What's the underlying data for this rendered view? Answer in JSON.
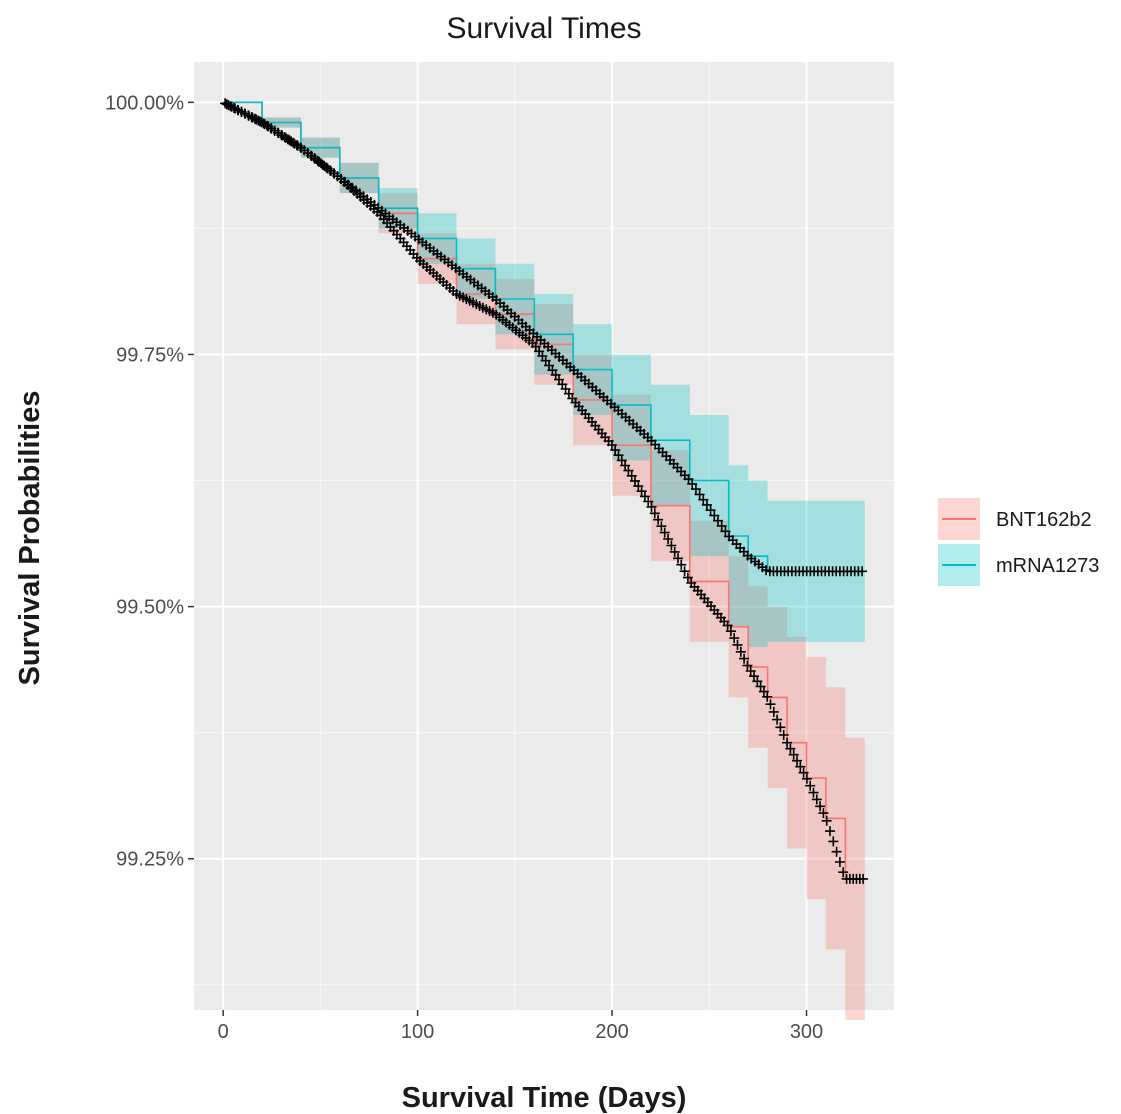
{
  "chart_data": {
    "type": "line",
    "subtype": "kaplan-meier survival curve with confidence bands and censor marks",
    "title": "Survival Times",
    "xlabel": "Survival Time (Days)",
    "ylabel": "Survival Probabilities",
    "xlim": [
      -15,
      345
    ],
    "ylim": [
      99.1,
      100.04
    ],
    "x_ticks": [
      0,
      100,
      200,
      300
    ],
    "x_tick_labels": [
      "0",
      "100",
      "200",
      "300"
    ],
    "y_ticks": [
      99.25,
      99.5,
      99.75,
      100.0
    ],
    "y_tick_labels": [
      "99.25%",
      "99.50%",
      "99.75%",
      "100.00%"
    ],
    "grid": true,
    "background": "#ebebeb",
    "legend_position": "right",
    "series": [
      {
        "name": "BNT162b2",
        "color": "#f8766d",
        "fill": "#f8766d",
        "x": [
          0,
          20,
          40,
          60,
          80,
          100,
          120,
          140,
          160,
          180,
          200,
          220,
          240,
          260,
          270,
          280,
          290,
          300,
          310,
          320,
          330
        ],
        "y": [
          100.0,
          99.98,
          99.955,
          99.925,
          99.89,
          99.845,
          99.81,
          99.79,
          99.76,
          99.705,
          99.66,
          99.6,
          99.525,
          99.48,
          99.44,
          99.41,
          99.365,
          99.33,
          99.29,
          99.23,
          99.23
        ],
        "lower": [
          100.0,
          99.975,
          99.945,
          99.91,
          99.87,
          99.82,
          99.78,
          99.755,
          99.72,
          99.66,
          99.61,
          99.545,
          99.465,
          99.41,
          99.36,
          99.32,
          99.26,
          99.21,
          99.16,
          99.09,
          99.09
        ],
        "upper": [
          100.0,
          99.985,
          99.965,
          99.94,
          99.91,
          99.87,
          99.84,
          99.825,
          99.8,
          99.75,
          99.71,
          99.655,
          99.585,
          99.55,
          99.52,
          99.5,
          99.47,
          99.45,
          99.42,
          99.37,
          99.37
        ]
      },
      {
        "name": "mRNA1273",
        "color": "#00bfc4",
        "fill": "#00bfc4",
        "x": [
          0,
          20,
          40,
          60,
          80,
          100,
          120,
          140,
          160,
          180,
          200,
          220,
          240,
          260,
          270,
          280,
          330
        ],
        "y": [
          100.0,
          99.98,
          99.955,
          99.925,
          99.895,
          99.865,
          99.835,
          99.805,
          99.77,
          99.735,
          99.7,
          99.665,
          99.625,
          99.57,
          99.55,
          99.535,
          99.535
        ],
        "lower": [
          100.0,
          99.975,
          99.945,
          99.91,
          99.875,
          99.84,
          99.805,
          99.77,
          99.73,
          99.69,
          99.645,
          99.6,
          99.55,
          99.48,
          99.46,
          99.465,
          99.465
        ],
        "upper": [
          100.0,
          99.985,
          99.965,
          99.94,
          99.915,
          99.89,
          99.865,
          99.84,
          99.81,
          99.78,
          99.75,
          99.72,
          99.69,
          99.64,
          99.625,
          99.605,
          99.605
        ]
      }
    ]
  }
}
